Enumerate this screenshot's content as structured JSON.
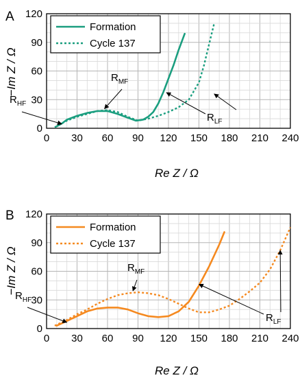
{
  "chart_data": [
    {
      "type": "line",
      "panel_label": "A",
      "xlabel": "Re Z / Ω",
      "ylabel": "−Im Z / Ω",
      "xlim": [
        0,
        240
      ],
      "ylim": [
        0,
        120
      ],
      "xticks": [
        0,
        30,
        60,
        90,
        120,
        150,
        180,
        210,
        240
      ],
      "yticks": [
        0,
        30,
        60,
        90,
        120
      ],
      "grid": true,
      "legend": "top-left",
      "colors": {
        "series": "#1a9e7f"
      },
      "series": [
        {
          "name": "Formation",
          "style": "solid",
          "x": [
            10,
            15,
            20,
            30,
            40,
            50,
            60,
            70,
            80,
            88,
            95,
            100,
            105,
            110,
            115,
            120,
            125,
            130,
            136
          ],
          "y": [
            2,
            5,
            9,
            13,
            16,
            18,
            18,
            15,
            11,
            8,
            9,
            12,
            17,
            26,
            38,
            52,
            66,
            82,
            99
          ]
        },
        {
          "name": "Cycle 137",
          "style": "dotted",
          "x": [
            8,
            15,
            20,
            30,
            40,
            50,
            60,
            70,
            80,
            90,
            100,
            110,
            120,
            130,
            140,
            150,
            155,
            160,
            165
          ],
          "y": [
            1,
            5,
            8,
            12,
            15,
            18,
            19,
            17,
            12,
            8,
            10,
            13,
            17,
            22,
            30,
            48,
            66,
            88,
            110
          ]
        }
      ],
      "annotations": [
        {
          "main": "R",
          "sub": "HF",
          "x": 15,
          "y": 3
        },
        {
          "main": "R",
          "sub": "MF",
          "x": 57,
          "y": 19
        },
        {
          "main": "R",
          "sub": "LF",
          "x": 118,
          "y": 36
        }
      ]
    },
    {
      "type": "line",
      "panel_label": "B",
      "xlabel": "Re Z / Ω",
      "ylabel": "−Im Z / Ω",
      "xlim": [
        0,
        240
      ],
      "ylim": [
        0,
        120
      ],
      "xticks": [
        0,
        30,
        60,
        90,
        120,
        150,
        180,
        210,
        240
      ],
      "yticks": [
        0,
        30,
        60,
        90,
        120
      ],
      "grid": true,
      "legend": "top-left",
      "colors": {
        "series": "#f5891f"
      },
      "series": [
        {
          "name": "Formation",
          "style": "solid",
          "x": [
            10,
            20,
            30,
            40,
            50,
            60,
            70,
            80,
            90,
            100,
            110,
            120,
            130,
            140,
            150,
            160,
            170,
            175
          ],
          "y": [
            3,
            8,
            13,
            18,
            21,
            22,
            22,
            20,
            16,
            13,
            12,
            13,
            18,
            28,
            45,
            65,
            88,
            101
          ]
        },
        {
          "name": "Cycle 137",
          "style": "dotted",
          "x": [
            8,
            20,
            30,
            40,
            50,
            60,
            70,
            80,
            90,
            100,
            110,
            120,
            130,
            140,
            150,
            160,
            170,
            180,
            190,
            200,
            210,
            220,
            230,
            240
          ],
          "y": [
            3,
            9,
            15,
            20,
            26,
            31,
            35,
            37,
            38,
            37,
            35,
            31,
            26,
            21,
            17,
            17,
            20,
            24,
            31,
            39,
            48,
            62,
            82,
            106
          ]
        }
      ],
      "annotations": [
        {
          "main": "R",
          "sub": "HF",
          "x": 20,
          "y": 5
        },
        {
          "main": "R",
          "sub": "MF",
          "x": 85,
          "y": 38
        },
        {
          "main": "R",
          "sub": "LF",
          "x": 150,
          "y": 45
        }
      ]
    }
  ]
}
